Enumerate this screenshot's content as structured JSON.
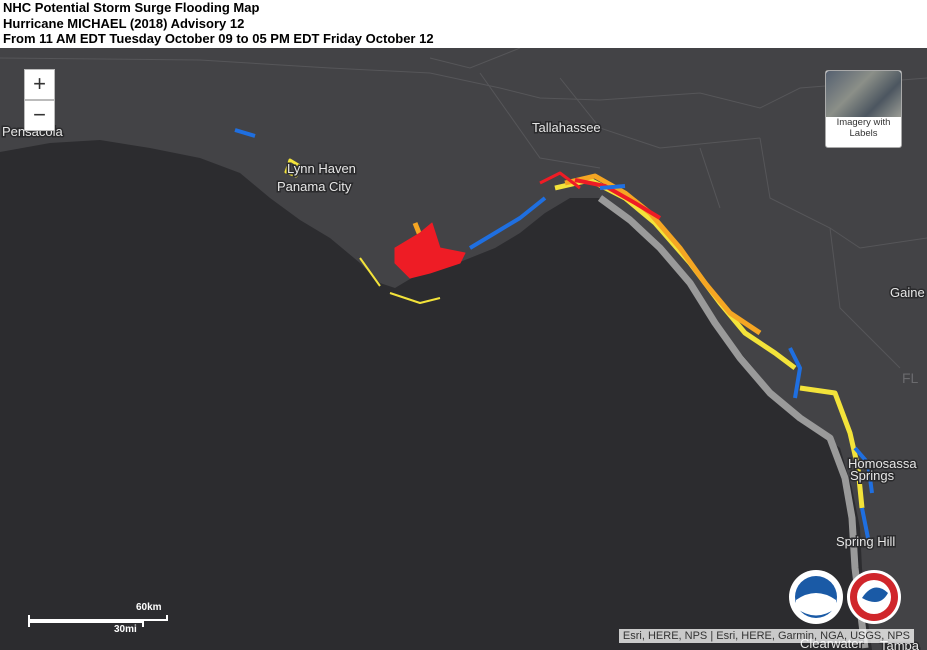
{
  "header": {
    "title": "NHC Potential Storm Surge Flooding Map",
    "subtitle": "Hurricane MICHAEL (2018) Advisory 12",
    "period": "From 11 AM EDT Tuesday October 09 to 05 PM EDT Friday October 12"
  },
  "map": {
    "zoom_in": "+",
    "zoom_out": "−",
    "basemap_toggle": {
      "line1": "Imagery with",
      "line2": "Labels"
    },
    "places": [
      "Pensacola",
      "Lynn Haven",
      "Panama City",
      "Tallahassee",
      "Gaine",
      "FL",
      "Homosassa",
      "Springs",
      "Spring Hill",
      "Clearwater",
      "Tampa"
    ],
    "scale": {
      "metric": "60km",
      "imperial": "30mi"
    },
    "attribution": "Esri, HERE, NPS | Esri, HERE, Garmin, NGA, USGS, NPS"
  }
}
